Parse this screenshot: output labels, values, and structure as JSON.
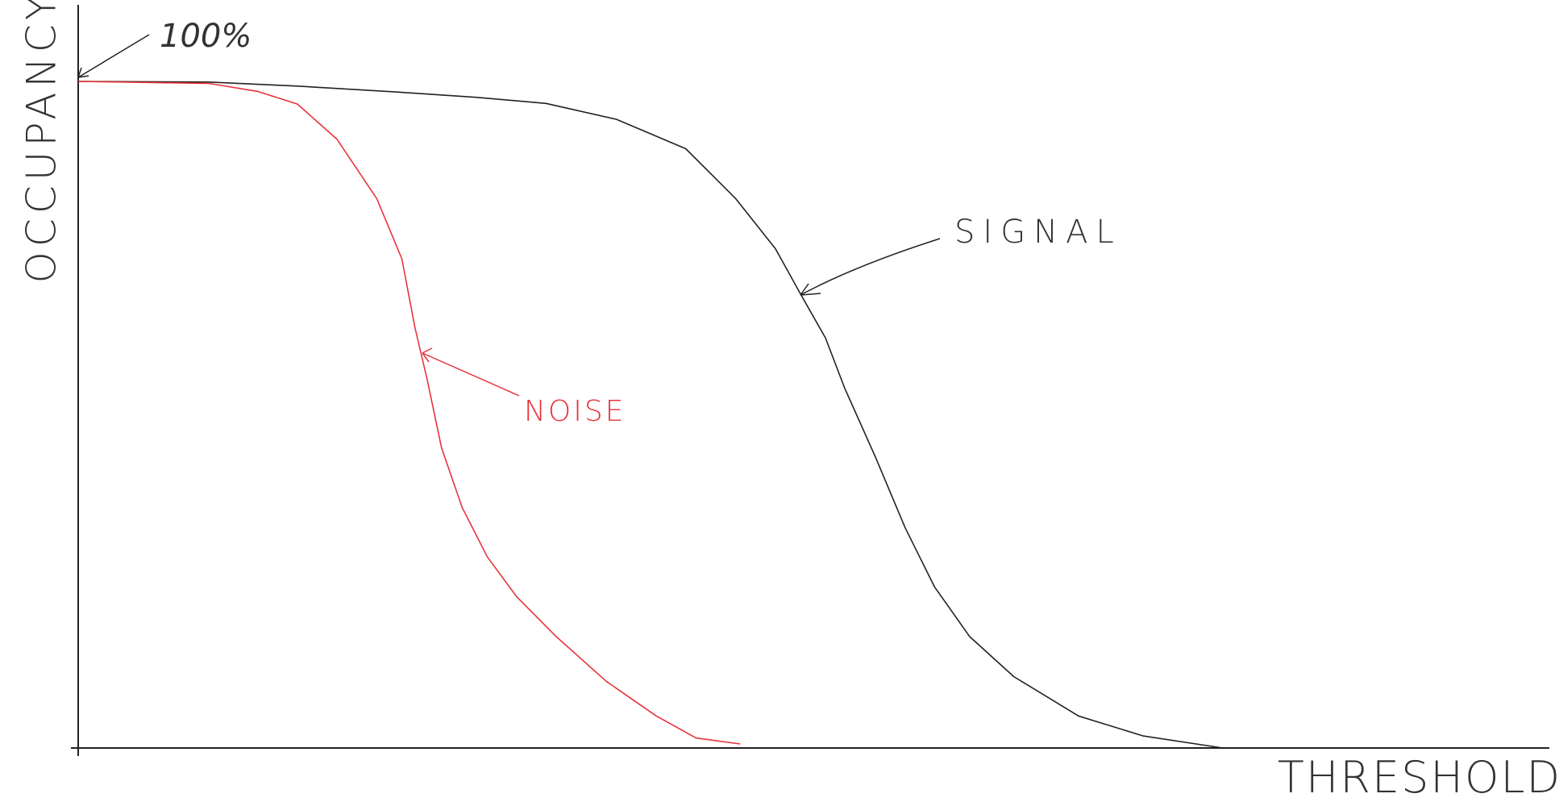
{
  "chart_data": {
    "type": "line",
    "x_label": "THRESHOLD",
    "y_label": "OCCUPANCY",
    "annotations": [
      {
        "text": "100%",
        "value": 100
      }
    ],
    "xlim": [
      0,
      100
    ],
    "ylim": [
      0,
      100
    ],
    "series": [
      {
        "name": "SIGNAL",
        "color": "#222222",
        "x": [
          0,
          8.9,
          14.9,
          21.7,
          27.1,
          31.8,
          36.6,
          41.3,
          44.7,
          47.4,
          49.1,
          50.8,
          52.1,
          54.2,
          56.2,
          58.2,
          60.6,
          63.6,
          68.0,
          72.4,
          77.8
        ],
        "values": [
          100,
          99.9,
          99.3,
          98.4,
          97.6,
          96.7,
          94.3,
          89.9,
          82.4,
          74.9,
          68.1,
          61.5,
          54.0,
          43.6,
          33.1,
          24.2,
          16.7,
          10.7,
          4.8,
          1.8,
          0
        ]
      },
      {
        "name": "NOISE",
        "color": "#e8333a",
        "x": [
          0,
          8.9,
          12.2,
          14.9,
          17.6,
          20.3,
          22.0,
          22.9,
          23.7,
          24.7,
          26.1,
          27.8,
          29.8,
          32.5,
          35.9,
          39.3,
          42.0,
          45.0
        ],
        "values": [
          100,
          99.7,
          98.5,
          96.6,
          91.3,
          82.4,
          73.4,
          63.0,
          55.5,
          45.0,
          36.1,
          28.7,
          22.7,
          16.7,
          10.0,
          4.8,
          1.5,
          0.6
        ]
      }
    ]
  }
}
